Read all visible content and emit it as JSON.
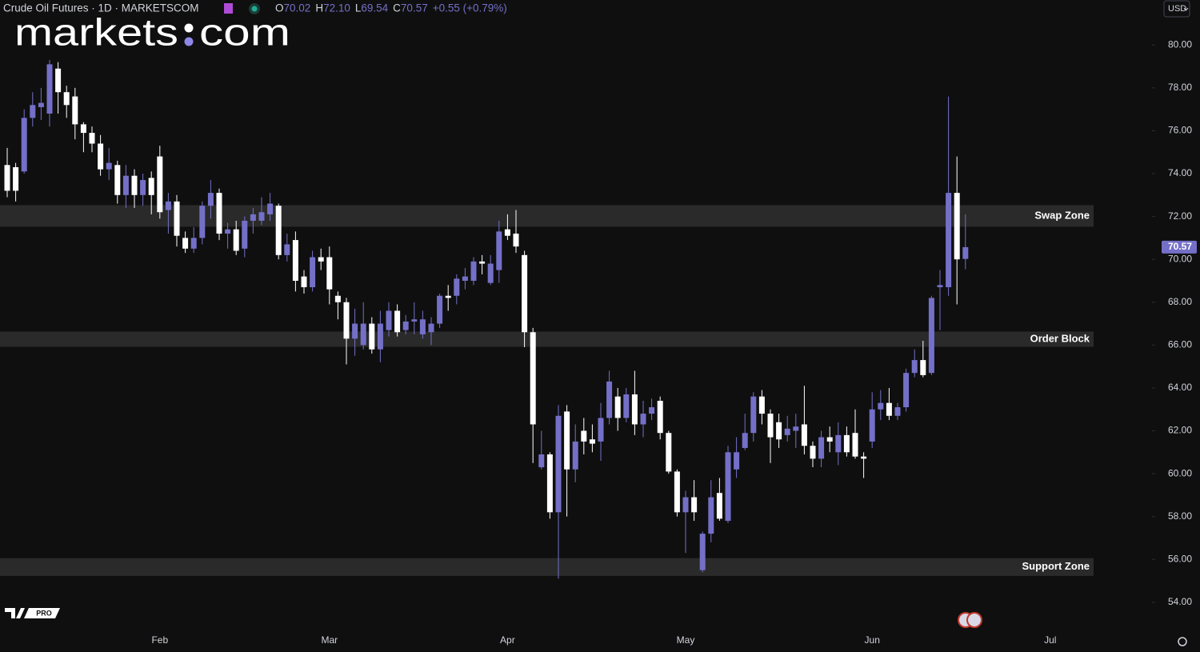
{
  "header": {
    "symbol": "Crude Oil Futures · 1D · MARKETSCOM",
    "ohlc": [
      {
        "key": "O",
        "value": "70.02"
      },
      {
        "key": "H",
        "value": "72.10"
      },
      {
        "key": "L",
        "value": "69.54"
      },
      {
        "key": "C",
        "value": "70.57"
      }
    ],
    "change": "+0.55 (+0.79%)",
    "currency": "USD",
    "brand": {
      "left": "markets",
      "right": "com"
    },
    "badge": "PRO"
  },
  "chart_data": {
    "type": "candlestick",
    "categories": [
      null,
      null,
      null,
      null,
      null,
      null,
      null,
      null,
      null,
      null,
      null,
      null,
      null,
      null,
      null,
      null,
      null,
      null,
      "Feb",
      null,
      null,
      null,
      null,
      null,
      null,
      null,
      null,
      null,
      null,
      null,
      null,
      null,
      null,
      null,
      null,
      null,
      null,
      null,
      "Mar",
      null,
      null,
      null,
      null,
      null,
      null,
      null,
      null,
      null,
      null,
      null,
      null,
      null,
      null,
      null,
      null,
      null,
      null,
      null,
      null,
      "Apr",
      null,
      null,
      null,
      null,
      null,
      null,
      null,
      null,
      null,
      null,
      null,
      null,
      null,
      null,
      null,
      null,
      null,
      null,
      null,
      null,
      "May",
      null,
      null,
      null,
      null,
      null,
      null,
      null,
      null,
      null,
      null,
      null,
      null,
      null,
      null,
      null,
      null,
      null,
      null,
      null,
      null,
      null,
      "Jun",
      null,
      null,
      null,
      null,
      null,
      null,
      null,
      null,
      null,
      null,
      null,
      null,
      null,
      null,
      null,
      null,
      null,
      null,
      null,
      null,
      "Jul"
    ],
    "open": [
      74.4,
      74.3,
      74.1,
      76.6,
      77.1,
      76.8,
      78.9,
      77.8,
      77.6,
      76.3,
      75.9,
      75.4,
      74.2,
      74.4,
      73.0,
      73.9,
      73.0,
      73.8,
      74.8,
      72.3,
      72.7,
      71.0,
      70.5,
      71.0,
      72.5,
      73.1,
      71.2,
      71.4,
      70.5,
      71.8,
      71.8,
      72.1,
      72.5,
      70.2,
      70.9,
      69.2,
      68.7,
      70.1,
      70.1,
      68.3,
      68.0,
      66.3,
      66.0,
      67.0,
      65.8,
      66.7,
      67.6,
      66.7,
      67.1,
      66.5,
      66.6,
      67.0,
      68.3,
      68.3,
      69.0,
      69.0,
      69.9,
      68.9,
      69.5,
      71.4,
      71.2,
      70.2,
      66.6,
      60.3,
      60.9,
      58.2,
      62.9,
      60.2,
      62.0,
      61.6,
      61.5,
      62.6,
      63.6,
      62.6,
      63.7,
      62.3,
      62.8,
      63.4,
      61.9,
      60.1,
      58.2,
      58.9,
      55.5,
      57.2,
      59.1,
      57.8,
      60.2,
      61.2,
      61.9,
      63.6,
      62.8,
      62.4,
      61.8,
      62.0,
      62.3,
      61.3,
      60.7,
      61.7,
      61.0,
      61.8,
      61.9,
      60.8,
      61.5,
      63.0,
      63.3,
      62.7,
      63.1,
      64.7,
      65.3,
      64.7,
      68.7,
      68.7,
      73.1,
      70.02,
      null,
      null,
      null,
      null,
      null,
      null,
      null,
      null,
      null,
      null
    ],
    "high": [
      75.2,
      74.5,
      77.0,
      77.8,
      78.0,
      79.3,
      79.2,
      78.1,
      78.0,
      76.4,
      76.2,
      75.8,
      75.2,
      74.6,
      74.4,
      74.2,
      74.0,
      74.1,
      75.3,
      73.1,
      73.0,
      71.3,
      71.5,
      72.7,
      73.7,
      73.3,
      71.7,
      71.8,
      72.0,
      72.4,
      72.9,
      73.1,
      72.6,
      71.2,
      71.3,
      69.5,
      70.4,
      70.5,
      70.6,
      68.5,
      68.2,
      67.7,
      68.0,
      67.3,
      67.6,
      68.0,
      67.9,
      67.4,
      68.0,
      67.6,
      67.3,
      68.4,
      68.8,
      69.3,
      69.6,
      70.1,
      70.2,
      70.2,
      71.8,
      72.1,
      72.3,
      70.4,
      66.8,
      62.0,
      61.0,
      63.2,
      63.2,
      62.3,
      62.6,
      62.3,
      63.3,
      64.8,
      64.0,
      64.0,
      64.8,
      63.4,
      63.5,
      63.6,
      62.0,
      60.2,
      59.2,
      59.7,
      57.3,
      59.7,
      59.8,
      61.3,
      61.7,
      62.8,
      63.8,
      63.9,
      63.0,
      62.8,
      62.7,
      62.8,
      64.1,
      61.5,
      62.0,
      62.2,
      62.4,
      62.2,
      63.0,
      61.0,
      63.8,
      63.9,
      64.0,
      63.3,
      64.9,
      65.8,
      66.2,
      68.3,
      69.5,
      77.6,
      74.8,
      72.1,
      null,
      null,
      null,
      null,
      null,
      null,
      null,
      null,
      null,
      null
    ],
    "low": [
      72.9,
      72.7,
      74.0,
      76.2,
      76.5,
      76.2,
      76.8,
      76.6,
      75.6,
      75.0,
      75.0,
      73.9,
      73.7,
      72.6,
      72.4,
      72.4,
      72.5,
      72.1,
      71.9,
      71.2,
      70.6,
      70.3,
      70.3,
      70.7,
      71.9,
      70.9,
      70.5,
      70.2,
      70.1,
      71.2,
      71.6,
      71.8,
      70.0,
      69.9,
      68.5,
      68.4,
      68.5,
      69.5,
      67.9,
      67.2,
      65.1,
      65.5,
      65.8,
      65.6,
      65.2,
      66.4,
      66.4,
      66.5,
      66.5,
      66.3,
      66.0,
      66.8,
      67.6,
      67.9,
      68.6,
      68.8,
      69.3,
      68.8,
      68.9,
      70.9,
      70.3,
      65.9,
      60.5,
      60.2,
      57.9,
      55.1,
      58.0,
      59.6,
      60.9,
      61.0,
      60.6,
      62.3,
      62.0,
      62.4,
      61.8,
      61.7,
      62.5,
      61.6,
      60.0,
      58.0,
      56.3,
      57.8,
      55.4,
      56.8,
      57.8,
      57.7,
      59.8,
      61.1,
      61.5,
      62.3,
      60.5,
      61.2,
      61.5,
      61.2,
      60.9,
      60.3,
      60.3,
      61.0,
      60.4,
      60.8,
      60.7,
      59.8,
      61.2,
      62.5,
      62.5,
      62.5,
      62.9,
      64.5,
      64.5,
      64.6,
      66.7,
      68.3,
      67.9,
      69.54,
      null,
      null,
      null,
      null,
      null,
      null,
      null,
      null,
      null,
      null
    ],
    "close": [
      73.2,
      73.2,
      76.6,
      77.2,
      77.3,
      79.1,
      77.8,
      77.2,
      76.3,
      75.9,
      75.4,
      74.2,
      74.5,
      73.0,
      73.9,
      73.0,
      73.7,
      73.0,
      72.2,
      72.7,
      71.1,
      70.5,
      71.0,
      72.5,
      73.1,
      71.2,
      71.4,
      70.4,
      71.8,
      72.1,
      72.2,
      72.6,
      70.2,
      70.7,
      69.0,
      68.7,
      70.1,
      69.9,
      68.6,
      68.0,
      66.3,
      67.0,
      67.0,
      65.8,
      67.0,
      67.6,
      66.6,
      67.1,
      67.2,
      67.2,
      67.0,
      68.3,
      68.2,
      69.1,
      69.2,
      69.9,
      69.8,
      69.8,
      71.3,
      71.1,
      70.6,
      66.6,
      62.3,
      60.9,
      58.2,
      62.7,
      60.2,
      61.5,
      61.5,
      61.4,
      62.6,
      64.3,
      62.6,
      63.7,
      62.3,
      62.8,
      63.1,
      61.9,
      60.1,
      58.2,
      58.9,
      58.2,
      57.2,
      58.9,
      57.9,
      61.0,
      61.0,
      61.9,
      63.6,
      62.8,
      61.7,
      61.6,
      62.1,
      62.2,
      61.3,
      60.7,
      61.7,
      61.5,
      61.8,
      61.0,
      60.8,
      60.7,
      63.0,
      63.3,
      62.7,
      63.1,
      64.7,
      65.3,
      64.6,
      68.2,
      68.8,
      73.1,
      70.0,
      70.57,
      null,
      null,
      null,
      null,
      null,
      null,
      null,
      null,
      null,
      null
    ],
    "up_color": "#7470c8",
    "down_color": "#ffffff",
    "ylim": [
      52.8,
      82.1
    ],
    "yticks": [
      {
        "value": 54,
        "label": "54.00"
      },
      {
        "value": 56,
        "label": "56.00"
      },
      {
        "value": 58,
        "label": "58.00"
      },
      {
        "value": 60,
        "label": "60.00"
      },
      {
        "value": 62,
        "label": "62.00"
      },
      {
        "value": 64,
        "label": "64.00"
      },
      {
        "value": 66,
        "label": "66.00"
      },
      {
        "value": 68,
        "label": "68.00"
      },
      {
        "value": 70,
        "label": "70.00"
      },
      {
        "value": 72,
        "label": "72.00"
      },
      {
        "value": 74,
        "label": "74.00"
      },
      {
        "value": 76,
        "label": "76.00"
      },
      {
        "value": 78,
        "label": "78.00"
      },
      {
        "value": 80,
        "label": "80.00"
      }
    ],
    "last_price": {
      "value": 70.57,
      "label": "70.57"
    },
    "zones": [
      {
        "label": "Swap Zone",
        "range": [
          71.52,
          72.53
        ]
      },
      {
        "label": "Order Block",
        "range": [
          65.92,
          66.63
        ]
      },
      {
        "label": "Support Zone",
        "range": [
          55.23,
          56.06
        ]
      }
    ]
  }
}
